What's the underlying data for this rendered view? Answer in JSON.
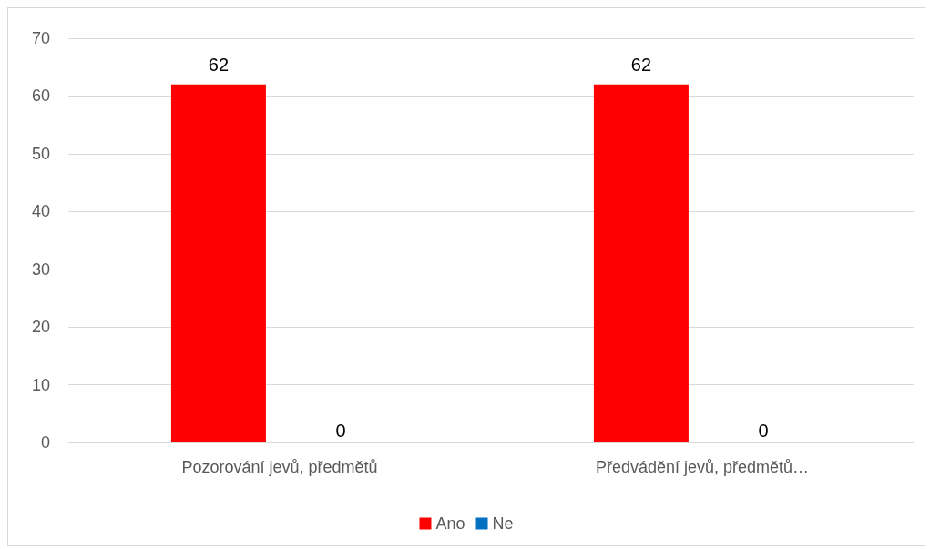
{
  "chart_data": {
    "type": "bar",
    "categories": [
      "Pozorování jevů, předmětů",
      "Předvádění jevů, předmětů…"
    ],
    "series": [
      {
        "name": "Ano",
        "color": "#ff0000",
        "values": [
          62,
          62
        ]
      },
      {
        "name": "Ne",
        "color": "#0070c0",
        "values": [
          0,
          0
        ]
      }
    ],
    "ylim": [
      0,
      70
    ],
    "yticks": [
      0,
      10,
      20,
      30,
      40,
      50,
      60,
      70
    ],
    "grid": "y",
    "legend": "bottom",
    "data_labels": true
  }
}
